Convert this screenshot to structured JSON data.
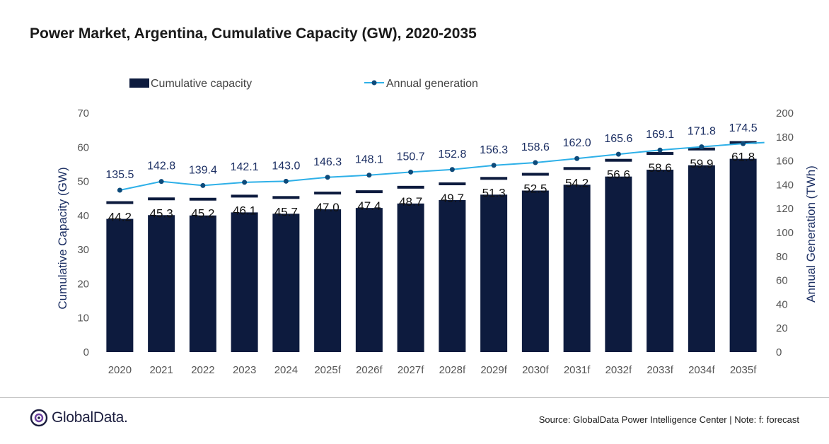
{
  "chart_data": {
    "type": "bar",
    "title": "Power Market, Argentina, Cumulative Capacity (GW), 2020-2035",
    "categories": [
      "2020",
      "2021",
      "2022",
      "2023",
      "2024",
      "2025f",
      "2026f",
      "2027f",
      "2028f",
      "2029f",
      "2030f",
      "2031f",
      "2032f",
      "2033f",
      "2034f",
      "2035f"
    ],
    "series": [
      {
        "name": "Cumulative capacity",
        "type": "bar",
        "axis": "left",
        "values": [
          44.2,
          45.3,
          45.2,
          46.1,
          45.7,
          47.0,
          47.4,
          48.7,
          49.7,
          51.3,
          52.5,
          54.2,
          56.6,
          58.6,
          59.9,
          61.8
        ],
        "color": "#0d1b3e"
      },
      {
        "name": "Annual generation",
        "type": "line",
        "axis": "right",
        "values": [
          135.5,
          142.8,
          139.4,
          142.1,
          143.0,
          146.3,
          148.1,
          150.7,
          152.8,
          156.3,
          158.6,
          162.0,
          165.6,
          169.1,
          171.8,
          174.5
        ],
        "color": "#2eb0e8",
        "marker_color": "#0d4a7a"
      }
    ],
    "ylabel": "Cumulative Capacity (GW)",
    "y2label": "Annual Generation (TWh)",
    "ylim": [
      0,
      70
    ],
    "y2lim": [
      0,
      200
    ],
    "yticks": [
      0,
      10,
      20,
      30,
      40,
      50,
      60,
      70
    ],
    "y2ticks": [
      0,
      20,
      40,
      60,
      80,
      100,
      120,
      140,
      160,
      180,
      200
    ],
    "grid": false,
    "legend": "top-left",
    "label_color": "#1c2f63"
  },
  "footer": {
    "logo": "GlobalData.",
    "source": "Source: GlobalData Power Intelligence Center | Note: f: forecast"
  }
}
